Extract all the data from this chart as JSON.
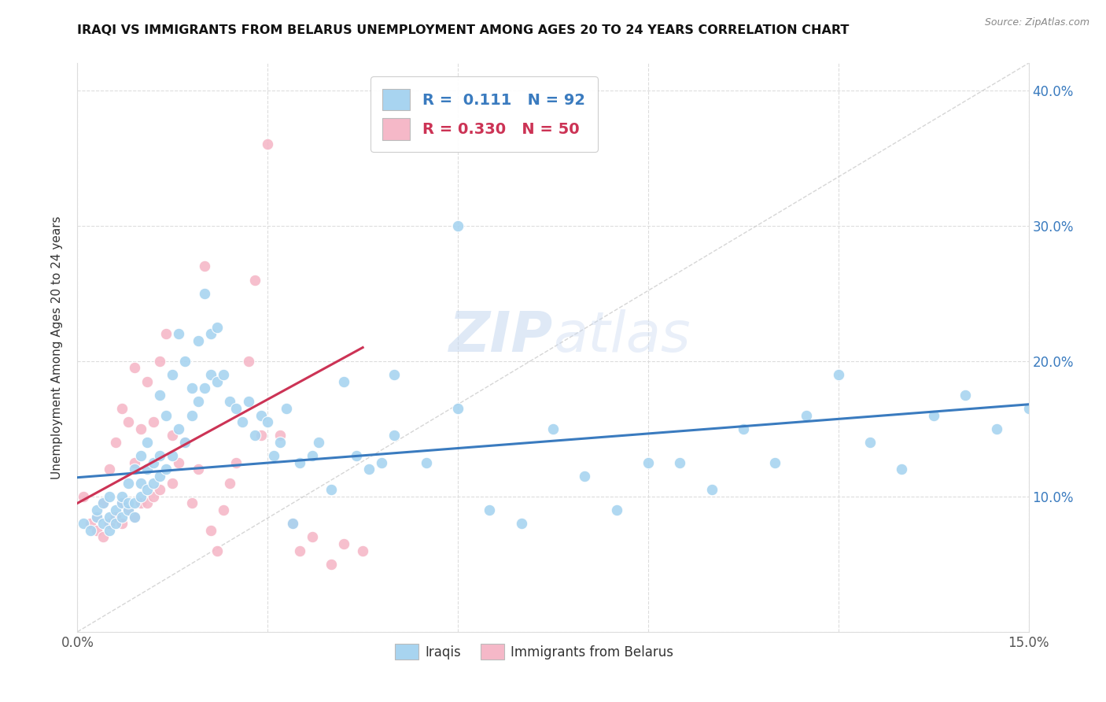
{
  "title": "IRAQI VS IMMIGRANTS FROM BELARUS UNEMPLOYMENT AMONG AGES 20 TO 24 YEARS CORRELATION CHART",
  "source": "Source: ZipAtlas.com",
  "ylabel": "Unemployment Among Ages 20 to 24 years",
  "xlim": [
    0.0,
    0.15
  ],
  "ylim": [
    0.0,
    0.42
  ],
  "iraqis_color": "#a8d4f0",
  "belarus_color": "#f5b8c8",
  "iraqis_R": 0.111,
  "iraqis_N": 92,
  "belarus_R": 0.33,
  "belarus_N": 50,
  "iraqis_line_color": "#3a7bbf",
  "belarus_line_color": "#cc3355",
  "diagonal_color": "#cccccc",
  "watermark_zip": "ZIP",
  "watermark_atlas": "atlas",
  "background_color": "#ffffff",
  "iraqis_x": [
    0.001,
    0.002,
    0.003,
    0.003,
    0.004,
    0.004,
    0.005,
    0.005,
    0.005,
    0.006,
    0.006,
    0.007,
    0.007,
    0.007,
    0.008,
    0.008,
    0.008,
    0.009,
    0.009,
    0.009,
    0.01,
    0.01,
    0.01,
    0.011,
    0.011,
    0.011,
    0.012,
    0.012,
    0.013,
    0.013,
    0.013,
    0.014,
    0.014,
    0.015,
    0.015,
    0.016,
    0.016,
    0.017,
    0.017,
    0.018,
    0.018,
    0.019,
    0.019,
    0.02,
    0.02,
    0.021,
    0.021,
    0.022,
    0.022,
    0.023,
    0.024,
    0.025,
    0.026,
    0.027,
    0.028,
    0.029,
    0.03,
    0.031,
    0.032,
    0.033,
    0.034,
    0.035,
    0.037,
    0.038,
    0.04,
    0.042,
    0.044,
    0.046,
    0.048,
    0.05,
    0.055,
    0.06,
    0.065,
    0.07,
    0.075,
    0.08,
    0.085,
    0.09,
    0.095,
    0.1,
    0.105,
    0.11,
    0.115,
    0.12,
    0.125,
    0.13,
    0.135,
    0.14,
    0.145,
    0.15,
    0.05,
    0.06
  ],
  "iraqis_y": [
    0.08,
    0.075,
    0.085,
    0.09,
    0.08,
    0.095,
    0.075,
    0.085,
    0.1,
    0.08,
    0.09,
    0.085,
    0.095,
    0.1,
    0.09,
    0.095,
    0.11,
    0.085,
    0.095,
    0.12,
    0.1,
    0.11,
    0.13,
    0.105,
    0.12,
    0.14,
    0.11,
    0.125,
    0.115,
    0.13,
    0.175,
    0.12,
    0.16,
    0.13,
    0.19,
    0.15,
    0.22,
    0.14,
    0.2,
    0.16,
    0.18,
    0.17,
    0.215,
    0.18,
    0.25,
    0.19,
    0.22,
    0.185,
    0.225,
    0.19,
    0.17,
    0.165,
    0.155,
    0.17,
    0.145,
    0.16,
    0.155,
    0.13,
    0.14,
    0.165,
    0.08,
    0.125,
    0.13,
    0.14,
    0.105,
    0.185,
    0.13,
    0.12,
    0.125,
    0.145,
    0.125,
    0.165,
    0.09,
    0.08,
    0.15,
    0.115,
    0.09,
    0.125,
    0.125,
    0.105,
    0.15,
    0.125,
    0.16,
    0.19,
    0.14,
    0.12,
    0.16,
    0.175,
    0.15,
    0.165,
    0.19,
    0.3
  ],
  "belarus_x": [
    0.001,
    0.002,
    0.003,
    0.003,
    0.004,
    0.004,
    0.005,
    0.005,
    0.006,
    0.006,
    0.007,
    0.007,
    0.007,
    0.008,
    0.008,
    0.009,
    0.009,
    0.009,
    0.01,
    0.01,
    0.011,
    0.011,
    0.012,
    0.012,
    0.013,
    0.013,
    0.014,
    0.015,
    0.015,
    0.016,
    0.017,
    0.018,
    0.019,
    0.02,
    0.021,
    0.022,
    0.023,
    0.024,
    0.025,
    0.027,
    0.028,
    0.029,
    0.03,
    0.032,
    0.034,
    0.035,
    0.037,
    0.04,
    0.042,
    0.045
  ],
  "belarus_y": [
    0.1,
    0.08,
    0.075,
    0.085,
    0.07,
    0.095,
    0.08,
    0.12,
    0.085,
    0.14,
    0.08,
    0.095,
    0.165,
    0.09,
    0.155,
    0.085,
    0.125,
    0.195,
    0.095,
    0.15,
    0.095,
    0.185,
    0.1,
    0.155,
    0.105,
    0.2,
    0.22,
    0.11,
    0.145,
    0.125,
    0.14,
    0.095,
    0.12,
    0.27,
    0.075,
    0.06,
    0.09,
    0.11,
    0.125,
    0.2,
    0.26,
    0.145,
    0.36,
    0.145,
    0.08,
    0.06,
    0.07,
    0.05,
    0.065,
    0.06
  ],
  "iraqis_line_x": [
    0.0,
    0.15
  ],
  "iraqis_line_y": [
    0.114,
    0.168
  ],
  "belarus_line_x": [
    0.0,
    0.045
  ],
  "belarus_line_y": [
    0.095,
    0.21
  ]
}
